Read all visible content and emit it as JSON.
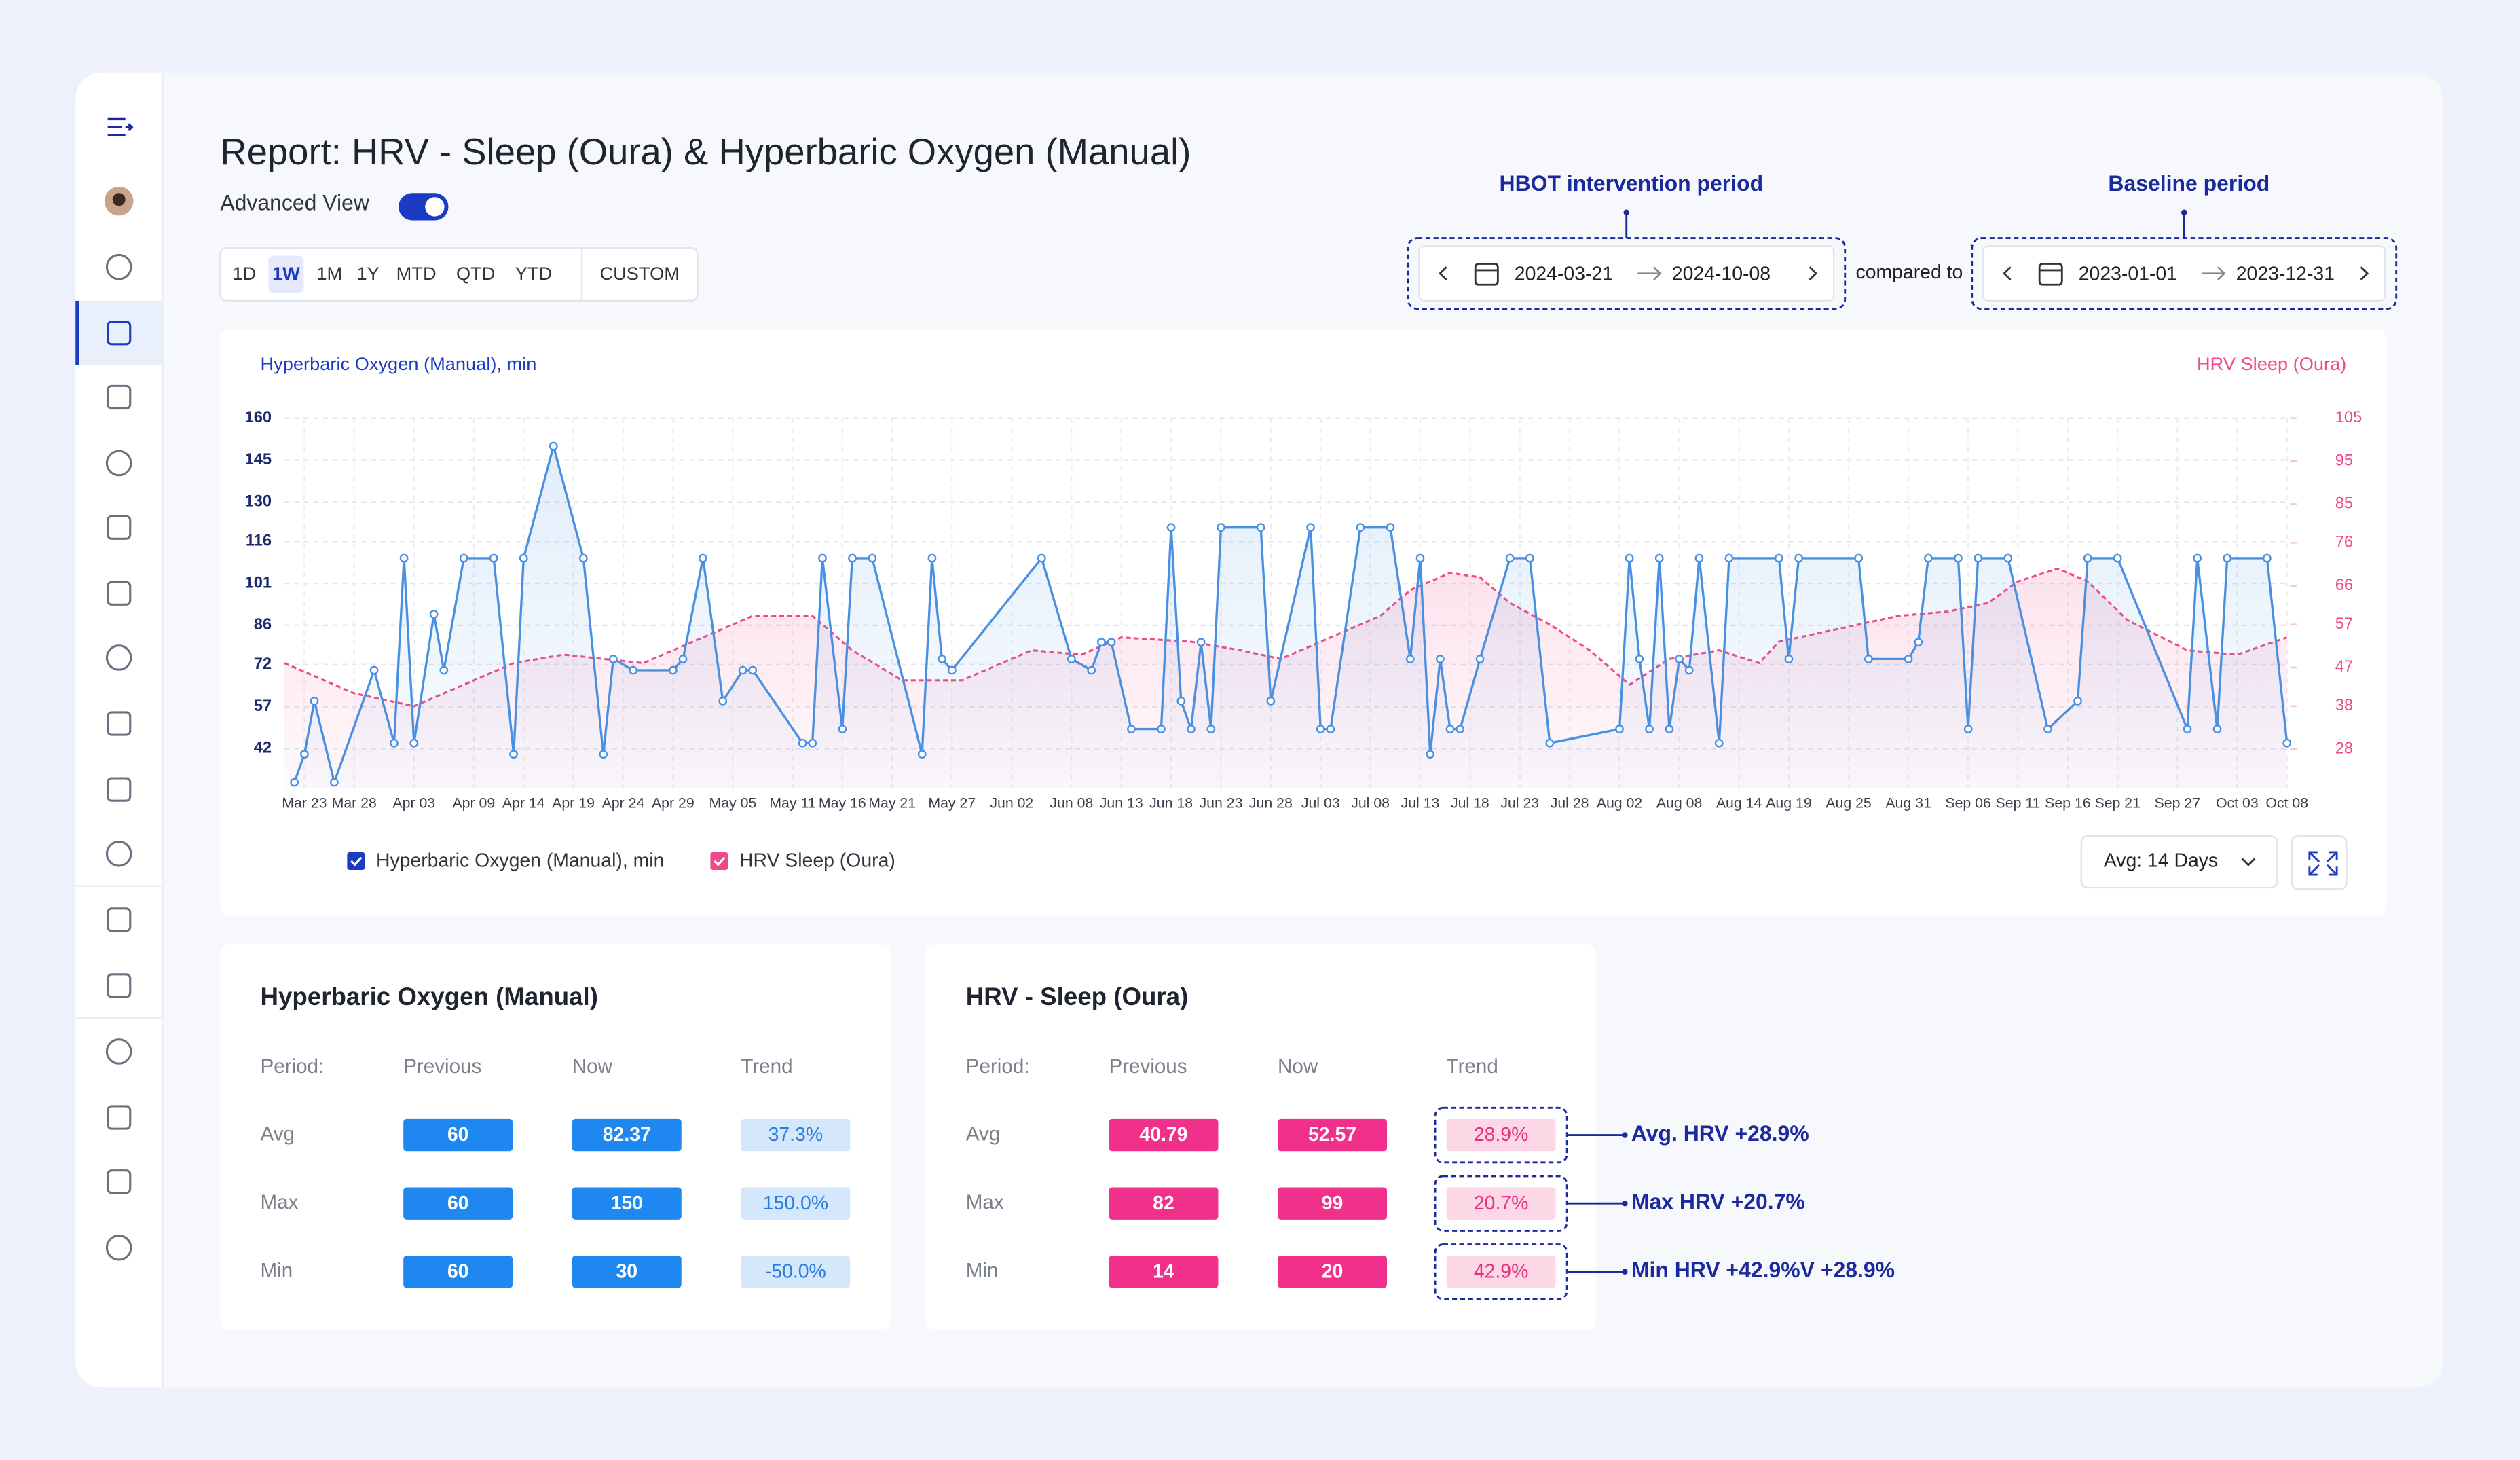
{
  "header": {
    "title": "Report: HRV - Sleep (Oura) & Hyperbaric Oxygen (Manual)",
    "advanced_view": "Advanced View",
    "periods": [
      "1D",
      "1W",
      "1M",
      "1Y",
      "MTD",
      "QTD",
      "YTD",
      "CUSTOM"
    ],
    "selected_period": "1W"
  },
  "annotations": {
    "intervention": "HBOT intervention period",
    "baseline": "Baseline period"
  },
  "ranges": {
    "intervention": {
      "start": "2024-03-21",
      "end": "2024-10-08"
    },
    "compared": "compared to",
    "baseline": {
      "start": "2023-01-01",
      "end": "2023-12-31"
    }
  },
  "chart_data": {
    "type": "line",
    "y_label": "Hyperbaric Oxygen (Manual), min",
    "y2_label": "HRV Sleep (Oura)",
    "xlim": [
      "Mar 21",
      "Oct 08"
    ],
    "xticks": [
      "Mar 23",
      "Mar 28",
      "Apr 03",
      "Apr 09",
      "Apr 14",
      "Apr 19",
      "Apr 24",
      "Apr 29",
      "May 05",
      "May 11",
      "May 16",
      "May 21",
      "May 27",
      "Jun 02",
      "Jun 08",
      "Jun 13",
      "Jun 18",
      "Jun 23",
      "Jun 28",
      "Jul 03",
      "Jul 08",
      "Jul 13",
      "Jul 18",
      "Jul 23",
      "Jul 28",
      "Aug 02",
      "Aug 08",
      "Aug 14",
      "Aug 19",
      "Aug 25",
      "Aug 31",
      "Sep 06",
      "Sep 11",
      "Sep 16",
      "Sep 21",
      "Sep 27",
      "Oct 03",
      "Oct 08"
    ],
    "ylim": [
      28,
      160
    ],
    "yticks": [
      42,
      57,
      72,
      86,
      101,
      116,
      130,
      145,
      160
    ],
    "y2lim": [
      19,
      105
    ],
    "y2ticks": [
      28,
      38,
      47,
      57,
      66,
      76,
      85,
      95,
      105
    ],
    "grid": true,
    "series": [
      {
        "name": "Hyperbaric Oxygen (Manual), min",
        "color": "#4a90e2",
        "markers": true,
        "dashed": false,
        "x": [
          "Mar 22",
          "Mar 23",
          "Mar 24",
          "Mar 26",
          "Mar 30",
          "Apr 01",
          "Apr 02",
          "Apr 03",
          "Apr 05",
          "Apr 06",
          "Apr 08",
          "Apr 11",
          "Apr 13",
          "Apr 14",
          "Apr 17",
          "Apr 20",
          "Apr 22",
          "Apr 23",
          "Apr 25",
          "Apr 29",
          "Apr 30",
          "May 02",
          "May 04",
          "May 06",
          "May 07",
          "May 12",
          "May 13",
          "May 14",
          "May 16",
          "May 17",
          "May 19",
          "May 24",
          "May 25",
          "May 26",
          "May 27",
          "Jun 05",
          "Jun 08",
          "Jun 10",
          "Jun 11",
          "Jun 12",
          "Jun 14",
          "Jun 17",
          "Jun 18",
          "Jun 19",
          "Jun 20",
          "Jun 21",
          "Jun 22",
          "Jun 23",
          "Jun 27",
          "Jun 28",
          "Jul 02",
          "Jul 03",
          "Jul 04",
          "Jul 07",
          "Jul 10",
          "Jul 12",
          "Jul 13",
          "Jul 14",
          "Jul 15",
          "Jul 16",
          "Jul 17",
          "Jul 19",
          "Jul 22",
          "Jul 24",
          "Jul 26",
          "Aug 02",
          "Aug 03",
          "Aug 04",
          "Aug 05",
          "Aug 06",
          "Aug 07",
          "Aug 08",
          "Aug 09",
          "Aug 10",
          "Aug 12",
          "Aug 13",
          "Aug 18",
          "Aug 19",
          "Aug 20",
          "Aug 26",
          "Aug 27",
          "Aug 31",
          "Sep 01",
          "Sep 02",
          "Sep 05",
          "Sep 06",
          "Sep 07",
          "Sep 10",
          "Sep 14",
          "Sep 17",
          "Sep 18",
          "Sep 21",
          "Sep 28",
          "Sep 29",
          "Oct 01",
          "Oct 02",
          "Oct 06",
          "Oct 08"
        ],
        "values": [
          30,
          40,
          59,
          30,
          70,
          44,
          110,
          44,
          90,
          70,
          110,
          110,
          40,
          110,
          150,
          110,
          40,
          74,
          70,
          70,
          74,
          110,
          59,
          70,
          70,
          44,
          44,
          110,
          49,
          110,
          110,
          40,
          110,
          74,
          70,
          110,
          74,
          70,
          80,
          80,
          49,
          49,
          121,
          59,
          49,
          80,
          49,
          121,
          121,
          59,
          121,
          49,
          49,
          121,
          121,
          74,
          110,
          40,
          74,
          49,
          49,
          74,
          110,
          110,
          44,
          49,
          110,
          74,
          49,
          110,
          49,
          74,
          70,
          110,
          44,
          110,
          110,
          74,
          110,
          110,
          74,
          74,
          80,
          110,
          110,
          49,
          110,
          110,
          49,
          59,
          110,
          110,
          49,
          110,
          49,
          110,
          110,
          44
        ]
      },
      {
        "name": "HRV Sleep (Oura)",
        "color": "#ee4a8b",
        "axis": "y2",
        "markers": false,
        "dashed": true,
        "x": [
          "Mar 21",
          "Mar 28",
          "Apr 03",
          "Apr 08",
          "Apr 13",
          "Apr 18",
          "Apr 26",
          "Apr 29",
          "May 03",
          "May 07",
          "May 13",
          "May 17",
          "May 22",
          "May 28",
          "Jun 04",
          "Jun 09",
          "Jun 13",
          "Jun 20",
          "Jun 25",
          "Jun 29",
          "Jul 04",
          "Jul 09",
          "Jul 12",
          "Jul 16",
          "Jul 19",
          "Jul 22",
          "Jul 26",
          "Jul 30",
          "Aug 03",
          "Aug 07",
          "Aug 12",
          "Aug 16",
          "Aug 18",
          "Aug 22",
          "Aug 26",
          "Aug 30",
          "Sep 04",
          "Sep 08",
          "Sep 11",
          "Sep 15",
          "Sep 18",
          "Sep 22",
          "Sep 28",
          "Oct 03",
          "Oct 08"
        ],
        "values": [
          48,
          41,
          38,
          43,
          48,
          50,
          48,
          51,
          55,
          59,
          59,
          51,
          44,
          44,
          51,
          50,
          54,
          53,
          51,
          49,
          54,
          59,
          65,
          69,
          68,
          62,
          57,
          51,
          43,
          49,
          51,
          48,
          53,
          55,
          57,
          59,
          60,
          62,
          67,
          70,
          67,
          58,
          51,
          50,
          54
        ]
      }
    ]
  },
  "avg_select": "Avg: 14 Days",
  "cards": [
    {
      "title": "Hyperbaric Oxygen (Manual)",
      "color": "#1e88f0",
      "trend_color": "#d5e7fb",
      "trend_text_color": "#2a7be0",
      "headers": [
        "Period:",
        "Previous",
        "Now",
        "Trend"
      ],
      "rows": [
        {
          "label": "Avg",
          "previous": 60,
          "now": 82.37,
          "trend": "37.3%"
        },
        {
          "label": "Max",
          "previous": 60,
          "now": 150,
          "trend": "150.0%"
        },
        {
          "label": "Min",
          "previous": 60,
          "now": 30,
          "trend": "-50.0%"
        }
      ]
    },
    {
      "title": "HRV - Sleep (Oura)",
      "color": "#f0308a",
      "trend_color": "#fcd8e7",
      "trend_text_color": "#e8307f",
      "headers": [
        "Period:",
        "Previous",
        "Now",
        "Trend"
      ],
      "rows": [
        {
          "label": "Avg",
          "previous": 40.79,
          "now": 52.57,
          "trend": "28.9%"
        },
        {
          "label": "Max",
          "previous": 82,
          "now": 99,
          "trend": "20.7%"
        },
        {
          "label": "Min",
          "previous": 14,
          "now": 20,
          "trend": "42.9%"
        }
      ]
    }
  ],
  "callouts": [
    "Avg. HRV +28.9%",
    "Max HRV +20.7%",
    "Min HRV +42.9%V +28.9%"
  ]
}
